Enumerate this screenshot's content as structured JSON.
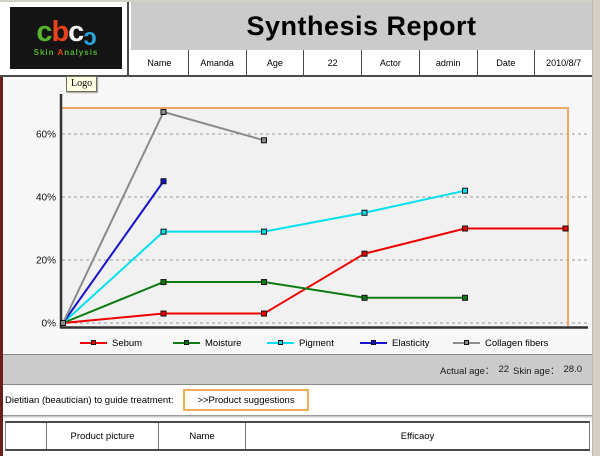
{
  "brand": {
    "letters": [
      "c",
      "b",
      "c"
    ],
    "swoosh": "ɔ",
    "tagline_parts": [
      "Skin ",
      "A",
      "nalysis"
    ]
  },
  "logo_tooltip": {
    "text": "Logo"
  },
  "header": {
    "title": "Synthesis Report"
  },
  "patient_header": {
    "cells": [
      "Name",
      "Amanda",
      "Age",
      "22",
      "Actor",
      "admin",
      "Date",
      "2010/8/7"
    ]
  },
  "chart_data": {
    "type": "line",
    "x": [
      1,
      2,
      3,
      4,
      5,
      6
    ],
    "x_tick_labels": [],
    "yticks": [
      0,
      20,
      40,
      60
    ],
    "ytick_labels": [
      "0%",
      "20%",
      "40%",
      "60%"
    ],
    "ylim": [
      0,
      68
    ],
    "grid": "horizontal-dashed",
    "legend_position": "bottom",
    "plot_border_color": "#eda766",
    "series": [
      {
        "name": "Sebum",
        "color": "#ee0000",
        "values": [
          0,
          3,
          3,
          22,
          30,
          30
        ]
      },
      {
        "name": "Moisture",
        "color": "#0e7a12",
        "values": [
          0,
          13,
          13,
          8,
          8
        ]
      },
      {
        "name": "Pigment",
        "color": "#00e0ee",
        "values": [
          0,
          29,
          29,
          35,
          42
        ]
      },
      {
        "name": "Elasticity",
        "color": "#1414cc",
        "values": [
          0,
          45
        ]
      },
      {
        "name": "Collagen fibers",
        "color": "#8a8a8a",
        "values": [
          0,
          67,
          58
        ]
      }
    ]
  },
  "summary": {
    "actual_age_label": "Actual age：",
    "actual_age_value": "22",
    "skin_age_label": "Skin age：",
    "skin_age_value": "28.0"
  },
  "treatment": {
    "label": "Dietitian (beautician) to guide treatment:",
    "button_label": ">>Product suggestions"
  },
  "product_table": {
    "columns": [
      "",
      "Product picture",
      "Name",
      "Efficaoy"
    ]
  },
  "colors": {
    "title_bar_bg": "#cbcbcb",
    "accent_orange": "#efae55",
    "logo_bg": "#141414",
    "logo_letters": [
      "#55b32d",
      "#e8431c",
      "#f2f2f2"
    ],
    "logo_swoosh": "#29a8e0",
    "tagline": [
      "#55b32d",
      "#e8431c",
      "#55b32d"
    ],
    "window_edge_left": "#6e1e1e"
  }
}
